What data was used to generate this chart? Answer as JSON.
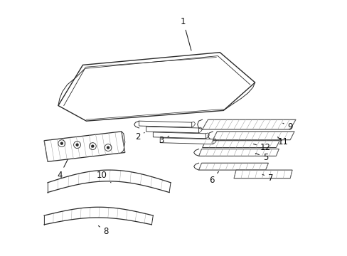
{
  "bg_color": "#ffffff",
  "line_color": "#2a2a2a",
  "figsize": [
    4.89,
    3.6
  ],
  "dpi": 100,
  "hatch_gray": "#999999",
  "hatch_light": "#cccccc"
}
